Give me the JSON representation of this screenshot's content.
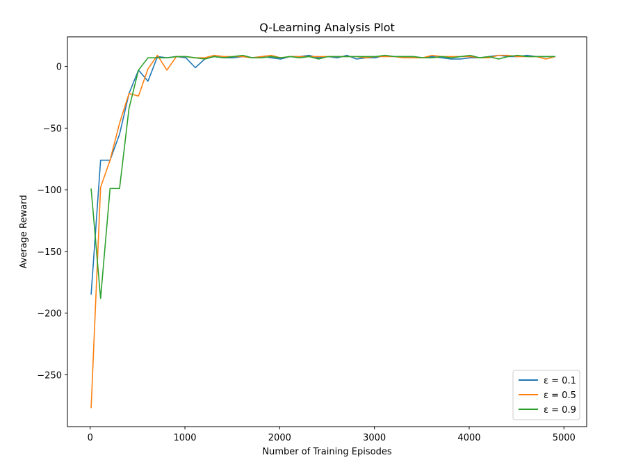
{
  "chart_data": {
    "type": "line",
    "title": "Q-Learning Analysis Plot",
    "xlabel": "Number of Training Episodes",
    "ylabel": "Average Reward",
    "xlim": [
      -240,
      5240
    ],
    "ylim": [
      -292,
      24
    ],
    "xticks": [
      0,
      1000,
      2000,
      3000,
      4000,
      5000
    ],
    "yticks": [
      0,
      -50,
      -100,
      -150,
      -200,
      -250
    ],
    "xtick_labels": [
      "0",
      "1000",
      "2000",
      "3000",
      "4000",
      "5000"
    ],
    "ytick_labels": [
      "0",
      "−50",
      "−100",
      "−150",
      "−200",
      "−250"
    ],
    "grid": false,
    "legend_position": "lower-right",
    "x": [
      10,
      110,
      210,
      310,
      410,
      510,
      610,
      710,
      810,
      910,
      1010,
      1110,
      1210,
      1310,
      1410,
      1510,
      1610,
      1710,
      1810,
      1910,
      2010,
      2110,
      2210,
      2310,
      2410,
      2510,
      2610,
      2710,
      2810,
      2910,
      3010,
      3110,
      3210,
      3310,
      3410,
      3510,
      3610,
      3710,
      3810,
      3910,
      4010,
      4110,
      4210,
      4310,
      4410,
      4510,
      4610,
      4710,
      4810,
      4910
    ],
    "series": [
      {
        "name": "ε = 0.1",
        "legend_label": "ε = 0.1",
        "color": "#1f77b4",
        "values": [
          -185,
          -76,
          -76,
          -55,
          -22,
          -3,
          -12,
          8,
          7,
          8,
          7,
          -1,
          6,
          8,
          7,
          7,
          8,
          7,
          8,
          7,
          6,
          8,
          8,
          9,
          7,
          8,
          7,
          9,
          6,
          7,
          7,
          9,
          8,
          8,
          8,
          7,
          8,
          7,
          6,
          6,
          7,
          7,
          8,
          9,
          8,
          8,
          9,
          8,
          8,
          8
        ]
      },
      {
        "name": "ε = 0.5",
        "legend_label": "ε = 0.5",
        "color": "#ff7f0e",
        "values": [
          -277,
          -98,
          -76,
          -46,
          -22,
          -24,
          -2,
          9,
          -3,
          8,
          8,
          7,
          7,
          9,
          8,
          8,
          8,
          7,
          8,
          9,
          7,
          8,
          8,
          8,
          8,
          8,
          8,
          8,
          8,
          7,
          8,
          8,
          8,
          7,
          7,
          7,
          9,
          8,
          8,
          8,
          8,
          7,
          7,
          9,
          9,
          8,
          8,
          8,
          6,
          8
        ]
      },
      {
        "name": "ε = 0.9",
        "legend_label": "ε = 0.9",
        "color": "#2ca02c",
        "values": [
          -99,
          -188,
          -99,
          -99,
          -34,
          -3,
          7,
          7,
          7,
          8,
          8,
          7,
          6,
          8,
          7,
          8,
          9,
          7,
          7,
          8,
          7,
          8,
          7,
          8,
          6,
          8,
          8,
          8,
          8,
          8,
          8,
          9,
          8,
          8,
          8,
          7,
          7,
          8,
          7,
          8,
          9,
          7,
          8,
          6,
          8,
          9,
          8,
          8,
          8,
          8
        ]
      }
    ]
  }
}
